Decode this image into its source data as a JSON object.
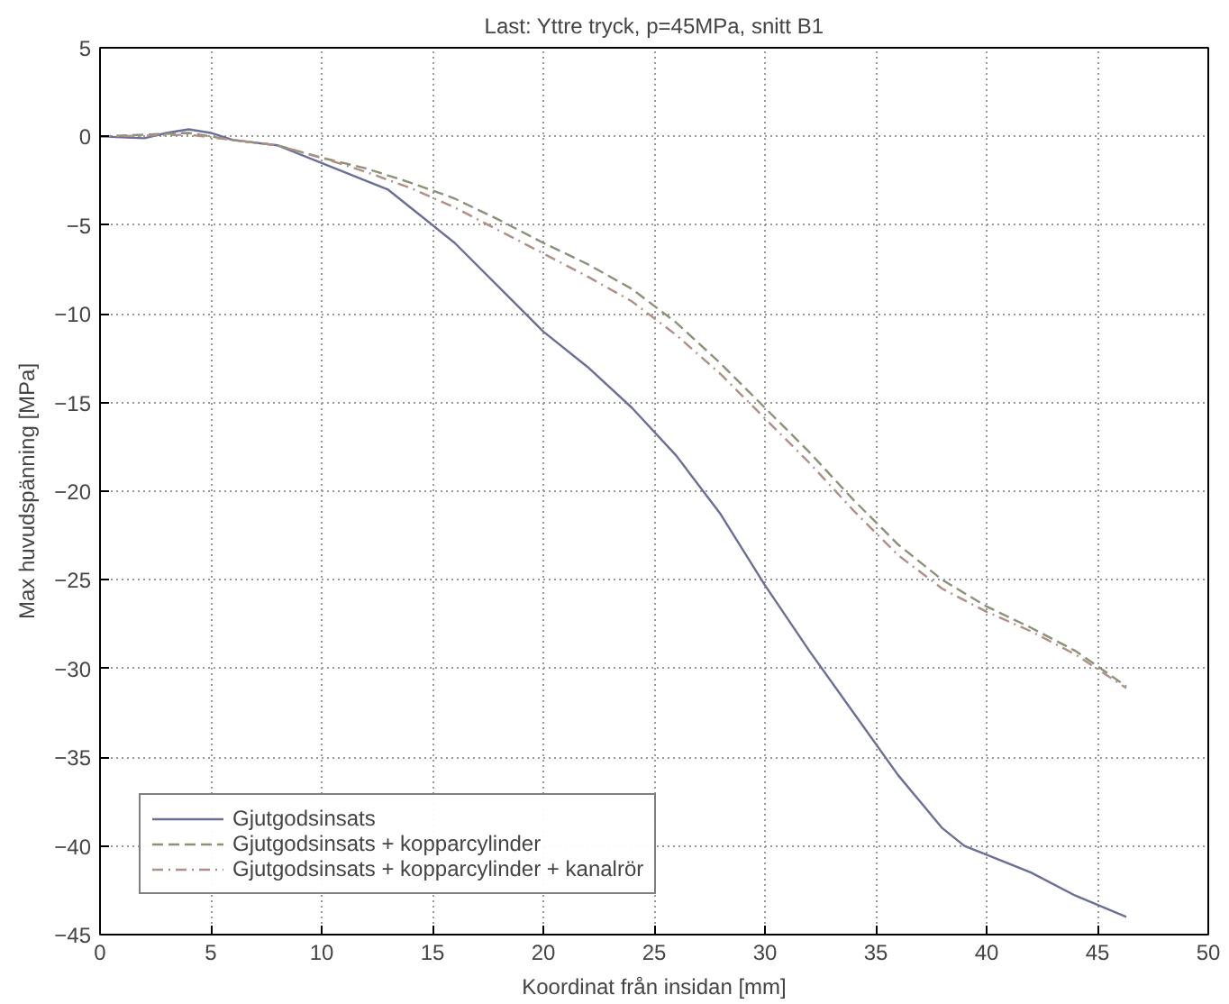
{
  "chart_data": {
    "type": "line",
    "title": "Last: Yttre tryck, p=45MPa, snitt B1",
    "xlabel": "Koordinat från insidan [mm]",
    "ylabel": "Max huvudspänning [MPa]",
    "xlim": [
      0,
      50
    ],
    "ylim": [
      -45,
      5
    ],
    "xticks": [
      0,
      5,
      10,
      15,
      20,
      25,
      30,
      35,
      40,
      45,
      50
    ],
    "yticks": [
      -45,
      -40,
      -35,
      -30,
      -25,
      -20,
      -15,
      -10,
      -5,
      0,
      5
    ],
    "grid": true,
    "legend": "bottom left",
    "marker": "none",
    "series": [
      {
        "name": "Gjutgodsinsats",
        "color": "#6b6f98",
        "line_style": "solid",
        "x": [
          0,
          2,
          3,
          4,
          5,
          6,
          8,
          10,
          12,
          13,
          15,
          16,
          18,
          20,
          22,
          24,
          26,
          28,
          30,
          32,
          34,
          36,
          38,
          39,
          40,
          42,
          44,
          46.3
        ],
        "values": [
          0,
          -0.1,
          0.2,
          0.4,
          0.2,
          -0.2,
          -0.5,
          -1.5,
          -2.5,
          -3,
          -5,
          -6,
          -8.5,
          -11,
          -13,
          -15.3,
          -18,
          -21.3,
          -25.3,
          -29,
          -32.5,
          -36,
          -39,
          -40,
          -40.5,
          -41.5,
          -42.8,
          -44
        ]
      },
      {
        "name": "Gjutgodsinsats + kopparcylinder",
        "color": "#8a9278",
        "line_style": "dashed",
        "x": [
          0,
          4,
          6,
          8,
          10,
          12,
          14,
          16,
          18,
          20,
          22,
          24,
          26,
          28,
          30,
          32,
          34,
          36,
          38,
          40,
          42,
          44,
          46.3
        ],
        "values": [
          0,
          0.2,
          -0.2,
          -0.5,
          -1.2,
          -1.8,
          -2.6,
          -3.5,
          -4.7,
          -6,
          -7.2,
          -8.6,
          -10.5,
          -12.8,
          -15.3,
          -17.8,
          -20.5,
          -23,
          -25,
          -26.5,
          -27.7,
          -29,
          -31
        ]
      },
      {
        "name": "Gjutgodsinsats + kopparcylinder + kanalrör",
        "color": "#b08f86",
        "line_style": "dashdot",
        "x": [
          0,
          4,
          8,
          10,
          12,
          14,
          16,
          18,
          20,
          22,
          24,
          26,
          28,
          30,
          32,
          34,
          36,
          38,
          40,
          42,
          44,
          46.3
        ],
        "values": [
          0,
          0.1,
          -0.5,
          -1.2,
          -2,
          -2.9,
          -4,
          -5.3,
          -6.6,
          -7.9,
          -9.3,
          -11.2,
          -13.4,
          -15.9,
          -18.4,
          -21.1,
          -23.6,
          -25.5,
          -26.8,
          -27.9,
          -29.2,
          -31.1
        ]
      }
    ]
  }
}
